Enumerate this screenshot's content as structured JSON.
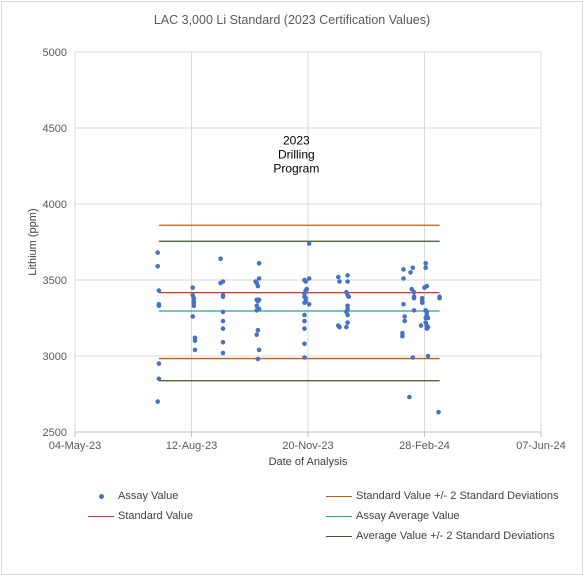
{
  "chart_data": {
    "type": "scatter",
    "title": "LAC 3,000 Li Standard (2023 Certification Values)",
    "xlabel": "Date of Analysis",
    "ylabel": "Lithium (ppm)",
    "ylim": [
      2500,
      5000
    ],
    "yticks": [
      "5000",
      "4500",
      "4000",
      "3500",
      "3000",
      "2500"
    ],
    "xlim": [
      "2023-05-04",
      "2024-06-07"
    ],
    "xticks": [
      {
        "date": "2023-05-04",
        "label": "04-May-23"
      },
      {
        "date": "2023-08-12",
        "label": "12-Aug-23"
      },
      {
        "date": "2023-11-20",
        "label": "20-Nov-23"
      },
      {
        "date": "2024-02-28",
        "label": "28-Feb-24"
      },
      {
        "date": "2024-06-07",
        "label": "07-Jun-24"
      }
    ],
    "grid": true,
    "annotation": {
      "lines": [
        "2023",
        "Drilling",
        "Program"
      ],
      "x": "2023-11-10",
      "y": 4220
    },
    "series": [
      {
        "name": "Assay Value",
        "kind": "points",
        "color": "#4472c4",
        "points": [
          [
            "2023-07-14",
            3680
          ],
          [
            "2023-07-14",
            3590
          ],
          [
            "2023-07-14",
            2700
          ],
          [
            "2023-07-15",
            3430
          ],
          [
            "2023-07-15",
            3340
          ],
          [
            "2023-07-15",
            3330
          ],
          [
            "2023-07-15",
            2950
          ],
          [
            "2023-07-15",
            2850
          ],
          [
            "2023-08-13",
            3450
          ],
          [
            "2023-08-13",
            3400
          ],
          [
            "2023-08-14",
            3380
          ],
          [
            "2023-08-14",
            3360
          ],
          [
            "2023-08-14",
            3350
          ],
          [
            "2023-08-14",
            3330
          ],
          [
            "2023-08-13",
            3260
          ],
          [
            "2023-08-15",
            3120
          ],
          [
            "2023-08-15",
            3100
          ],
          [
            "2023-08-15",
            3040
          ],
          [
            "2023-09-06",
            3640
          ],
          [
            "2023-09-06",
            3480
          ],
          [
            "2023-09-08",
            3490
          ],
          [
            "2023-09-08",
            3400
          ],
          [
            "2023-09-08",
            3390
          ],
          [
            "2023-09-08",
            3290
          ],
          [
            "2023-09-08",
            3230
          ],
          [
            "2023-09-08",
            3180
          ],
          [
            "2023-09-08",
            3090
          ],
          [
            "2023-09-08",
            3020
          ],
          [
            "2023-10-06",
            3490
          ],
          [
            "2023-10-07",
            3480
          ],
          [
            "2023-10-08",
            3460
          ],
          [
            "2023-10-09",
            3610
          ],
          [
            "2023-10-09",
            3510
          ],
          [
            "2023-10-07",
            3370
          ],
          [
            "2023-10-08",
            3360
          ],
          [
            "2023-10-09",
            3370
          ],
          [
            "2023-10-07",
            3330
          ],
          [
            "2023-10-07",
            3300
          ],
          [
            "2023-10-09",
            3310
          ],
          [
            "2023-10-08",
            3170
          ],
          [
            "2023-10-07",
            3140
          ],
          [
            "2023-10-09",
            3040
          ],
          [
            "2023-10-08",
            2980
          ],
          [
            "2023-11-17",
            3500
          ],
          [
            "2023-11-18",
            3490
          ],
          [
            "2023-11-19",
            3440
          ],
          [
            "2023-11-18",
            3430
          ],
          [
            "2023-11-17",
            3410
          ],
          [
            "2023-11-17",
            3390
          ],
          [
            "2023-11-18",
            3380
          ],
          [
            "2023-11-18",
            3360
          ],
          [
            "2023-11-17",
            3350
          ],
          [
            "2023-11-17",
            3270
          ],
          [
            "2023-11-17",
            3230
          ],
          [
            "2023-11-17",
            3180
          ],
          [
            "2023-11-17",
            3080
          ],
          [
            "2023-11-17",
            2990
          ],
          [
            "2023-11-21",
            3740
          ],
          [
            "2023-11-21",
            3510
          ],
          [
            "2023-11-21",
            3340
          ],
          [
            "2023-12-16",
            3520
          ],
          [
            "2023-12-17",
            3490
          ],
          [
            "2023-12-16",
            3200
          ],
          [
            "2023-12-17",
            3190
          ],
          [
            "2023-12-24",
            3530
          ],
          [
            "2023-12-24",
            3490
          ],
          [
            "2023-12-23",
            3420
          ],
          [
            "2023-12-24",
            3400
          ],
          [
            "2023-12-25",
            3390
          ],
          [
            "2023-12-24",
            3330
          ],
          [
            "2023-12-24",
            3310
          ],
          [
            "2023-12-23",
            3290
          ],
          [
            "2023-12-24",
            3270
          ],
          [
            "2023-12-24",
            3220
          ],
          [
            "2023-12-23",
            3190
          ],
          [
            "2024-02-10",
            3570
          ],
          [
            "2024-02-10",
            3510
          ],
          [
            "2024-02-10",
            3340
          ],
          [
            "2024-02-11",
            3260
          ],
          [
            "2024-02-11",
            3230
          ],
          [
            "2024-02-09",
            3150
          ],
          [
            "2024-02-09",
            3130
          ],
          [
            "2024-02-16",
            3550
          ],
          [
            "2024-02-18",
            3580
          ],
          [
            "2024-02-17",
            3440
          ],
          [
            "2024-02-19",
            3420
          ],
          [
            "2024-02-19",
            3390
          ],
          [
            "2024-02-19",
            3380
          ],
          [
            "2024-02-19",
            3300
          ],
          [
            "2024-02-18",
            2990
          ],
          [
            "2024-02-15",
            2730
          ],
          [
            "2024-02-29",
            3610
          ],
          [
            "2024-02-29",
            3580
          ],
          [
            "2024-02-28",
            3450
          ],
          [
            "2024-03-01",
            3460
          ],
          [
            "2024-02-26",
            3380
          ],
          [
            "2024-02-26",
            3360
          ],
          [
            "2024-02-26",
            3350
          ],
          [
            "2024-02-25",
            3200
          ],
          [
            "2024-02-29",
            3300
          ],
          [
            "2024-03-01",
            3290
          ],
          [
            "2024-03-01",
            3270
          ],
          [
            "2024-02-29",
            3250
          ],
          [
            "2024-02-29",
            3220
          ],
          [
            "2024-03-01",
            3200
          ],
          [
            "2024-03-02",
            3190
          ],
          [
            "2024-03-01",
            3180
          ],
          [
            "2024-03-02",
            3250
          ],
          [
            "2024-03-02",
            3000
          ],
          [
            "2024-03-12",
            3390
          ],
          [
            "2024-03-12",
            3380
          ],
          [
            "2024-03-11",
            2630
          ]
        ]
      },
      {
        "name": "Standard Value",
        "kind": "hline",
        "color": "#e03030",
        "y": 3417,
        "x_range": [
          "2023-07-15",
          "2024-03-12"
        ]
      },
      {
        "name": "Standard Value +/- 2 Standard Deviations",
        "kind": "hband",
        "color": "#c55a11",
        "y": [
          2983,
          3860
        ],
        "x_range": [
          "2023-07-15",
          "2024-03-12"
        ]
      },
      {
        "name": "Assay Average Value",
        "kind": "hline",
        "color": "#1aa89a",
        "y": 3296,
        "x_range": [
          "2023-07-15",
          "2024-03-12"
        ]
      },
      {
        "name": "Average Value +/- 2 Standard Deviations",
        "kind": "hband",
        "color": "#375623",
        "y": [
          2837,
          3755
        ],
        "x_range": [
          "2023-07-15",
          "2024-03-12"
        ]
      }
    ],
    "legend": {
      "position": "bottom",
      "items": [
        {
          "label": "Assay Value",
          "swatch": "dot",
          "color": "#4472c4"
        },
        {
          "label": "Standard Value +/- 2 Standard Deviations",
          "swatch": "line",
          "color": "#c55a11"
        },
        {
          "label": "Standard Value",
          "swatch": "line",
          "color": "#e03030"
        },
        {
          "label": "Assay Average Value",
          "swatch": "line",
          "color": "#1aa89a"
        },
        {
          "label": "Average Value +/- 2 Standard Deviations",
          "swatch": "line",
          "color": "#375623"
        }
      ]
    }
  }
}
